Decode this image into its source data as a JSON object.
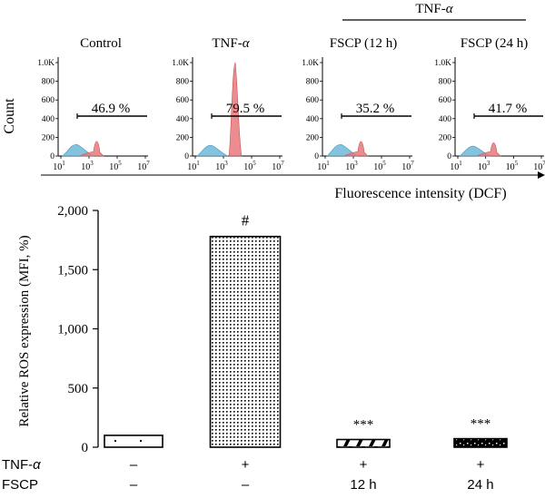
{
  "flow": {
    "group_header": "TNF-α",
    "y_axis_label": "Count",
    "x_axis_label": "Fluorescence intensity (DCF)",
    "y_ticks": [
      "1.0K",
      "800",
      "600",
      "400",
      "200",
      "0"
    ],
    "x_ticks": [
      {
        "base": "10",
        "exp": "1"
      },
      {
        "base": "10",
        "exp": "3"
      },
      {
        "base": "10",
        "exp": "5"
      },
      {
        "base": "10",
        "exp": "7"
      }
    ],
    "panels": [
      {
        "title": "Control",
        "percent": "46.9 %",
        "peak": "low"
      },
      {
        "title": "TNF-",
        "title_italic": "α",
        "percent": "79.5 %",
        "peak": "high"
      },
      {
        "title": "FSCP (12 h)",
        "percent": "35.2 %",
        "peak": "low"
      },
      {
        "title": "FSCP (24 h)",
        "percent": "41.7 %",
        "peak": "mid"
      }
    ],
    "colors": {
      "control_hist": "#6fb8d8",
      "sample_hist": "#e8797c"
    }
  },
  "chart_data": {
    "type": "bar",
    "categories": [
      "Control",
      "TNF-α",
      "FSCP 12 h",
      "FSCP 24 h"
    ],
    "values": [
      100,
      1780,
      65,
      72
    ],
    "ylabel": "Relative ROS expression (MFI, %)",
    "ylim": [
      0,
      2000
    ],
    "y_ticks": [
      0,
      500,
      1000,
      1500,
      2000
    ],
    "y_tick_labels": [
      "0",
      "500",
      "1,000",
      "1,500",
      "2,000"
    ],
    "annotations": [
      "",
      "#",
      "***",
      "***"
    ],
    "grid": false
  },
  "conditions": {
    "rows": [
      {
        "label": "TNF-",
        "label_italic": "α",
        "values": [
          "–",
          "+",
          "+",
          "+"
        ]
      },
      {
        "label": "FSCP",
        "values": [
          "–",
          "–",
          "12 h",
          "24 h"
        ]
      }
    ]
  }
}
